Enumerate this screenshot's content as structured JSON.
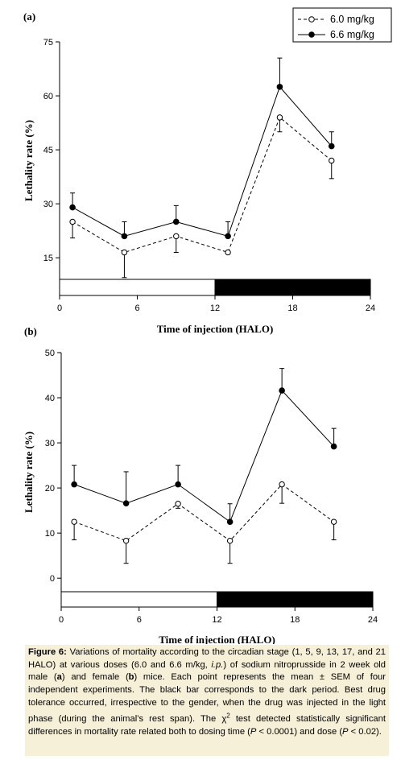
{
  "chart_data": [
    {
      "type": "line",
      "panel_label": "(a)",
      "xlabel": "Time of injection (HALO)",
      "ylabel": "Lethality rate (%)",
      "xlim": [
        0,
        24
      ],
      "ylim": [
        9,
        75
      ],
      "xticks": [
        "0",
        "6",
        "12",
        "18",
        "24"
      ],
      "yticks": [
        "15",
        "30",
        "45",
        "60",
        "75"
      ],
      "x": [
        1,
        5,
        9,
        13,
        17,
        21
      ],
      "series": [
        {
          "name": "6.0 mg/kg",
          "style": "dashed",
          "marker": "open-circle",
          "values": [
            25,
            16.5,
            21,
            16.5,
            54,
            42
          ],
          "sem": [
            4.5,
            7,
            4.5,
            0,
            4,
            5
          ]
        },
        {
          "name": "6.6 mg/kg",
          "style": "solid",
          "marker": "filled-circle",
          "values": [
            29,
            21,
            25,
            21,
            62.5,
            46
          ],
          "sem": [
            4,
            4,
            4.5,
            4,
            8,
            4
          ]
        }
      ],
      "light_dark_bar": {
        "light": [
          0,
          12
        ],
        "dark": [
          12,
          24
        ],
        "light_color": "#ffffff",
        "dark_color": "#000000"
      },
      "legend_position": "top-right"
    },
    {
      "type": "line",
      "panel_label": "(b)",
      "xlabel": "Time of injection (HALO)",
      "ylabel": "Lethality rate (%)",
      "xlim": [
        0,
        24
      ],
      "ylim": [
        -3,
        50
      ],
      "xticks": [
        "0",
        "6",
        "12",
        "18",
        "24"
      ],
      "yticks": [
        "0",
        "10",
        "20",
        "30",
        "40",
        "50"
      ],
      "x": [
        1,
        5,
        9,
        13,
        17,
        21
      ],
      "series": [
        {
          "name": "6.0 mg/kg",
          "style": "dashed",
          "marker": "open-circle",
          "values": [
            12.5,
            8.3,
            16.5,
            8.3,
            20.8,
            12.5
          ],
          "sem": [
            4,
            5,
            1,
            5,
            4.2,
            4
          ]
        },
        {
          "name": "6.6 mg/kg",
          "style": "solid",
          "marker": "filled-circle",
          "values": [
            20.8,
            16.6,
            20.8,
            12.5,
            41.6,
            29.2
          ],
          "sem": [
            4.2,
            7,
            4.2,
            4,
            4.9,
            4
          ]
        }
      ],
      "light_dark_bar": {
        "light": [
          0,
          12
        ],
        "dark": [
          12,
          24
        ],
        "light_color": "#ffffff",
        "dark_color": "#000000"
      }
    }
  ],
  "caption": {
    "label": "Figure 6:",
    "segments": [
      {
        "text": " Variations of mortality according to the circadian stage (1, 5, 9, 13, 17, and 21 HALO) at various doses (6.0 and 6.6 m/kg, "
      },
      {
        "text": "i.p.",
        "italic": true
      },
      {
        "text": ") of sodium nitroprusside in 2 week old male ("
      },
      {
        "text": "a",
        "bold": true
      },
      {
        "text": ") and female ("
      },
      {
        "text": "b",
        "bold": true
      },
      {
        "text": ") mice. Each point represents the mean ± SEM of four independent experiments. The black bar corresponds to the dark period. Best drug tolerance occurred, irrespective to the gender, when the drug was injected in the light phase (during the animal’s rest span). The χ"
      },
      {
        "text": "2",
        "sup": true
      },
      {
        "text": " test detected statistically significant differences in mortality rate related both to dosing time ("
      },
      {
        "text": "P",
        "italic": true
      },
      {
        "text": " < 0.0001) and dose ("
      },
      {
        "text": "P",
        "italic": true
      },
      {
        "text": " < 0.02)."
      }
    ]
  }
}
